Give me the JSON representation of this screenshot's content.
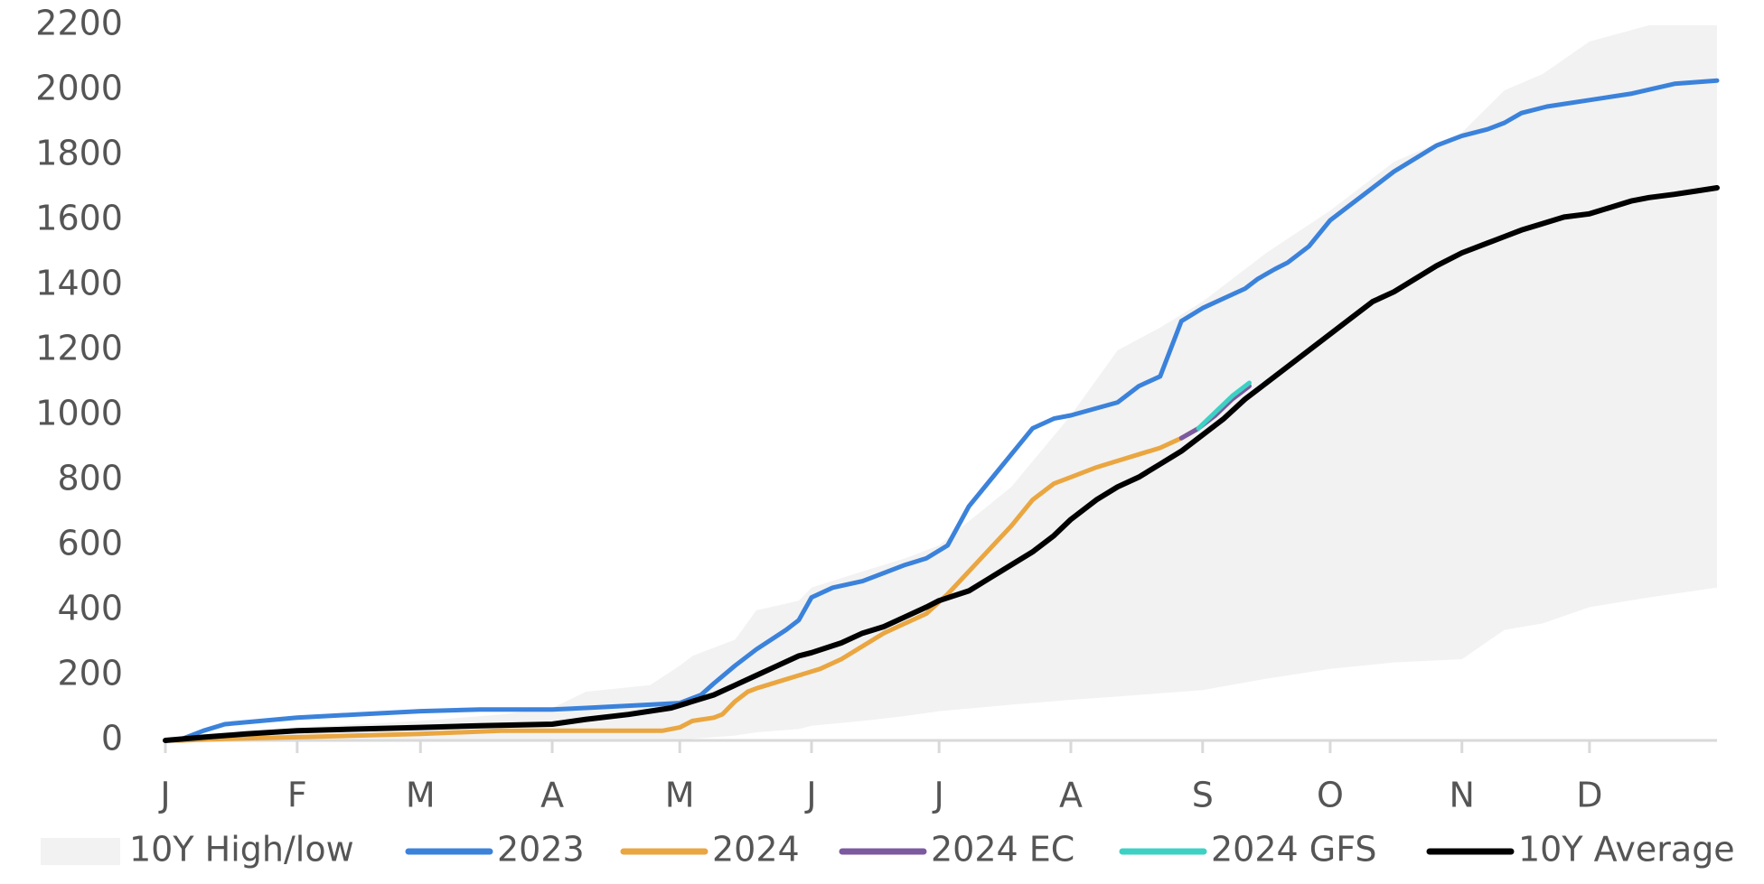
{
  "chart_data": {
    "type": "line",
    "title": "",
    "xlabel": "",
    "ylabel": "",
    "ylim": [
      0,
      2200
    ],
    "yticks": [
      "0",
      "200",
      "400",
      "600",
      "800",
      "1000",
      "1200",
      "1400",
      "1600",
      "1800",
      "2000",
      "2200"
    ],
    "xlim": [
      1,
      366
    ],
    "months": [
      "J",
      "F",
      "M",
      "A",
      "M",
      "J",
      "J",
      "A",
      "S",
      "O",
      "N",
      "D"
    ],
    "month_days": [
      1,
      32,
      61,
      92,
      122,
      153,
      183,
      214,
      245,
      275,
      306,
      336
    ],
    "grid": false,
    "legend_position": "bottom",
    "band": {
      "name": "10Y High/low",
      "color": "#f2f2f2",
      "x": [
        1,
        15,
        32,
        61,
        80,
        92,
        100,
        115,
        122,
        125,
        135,
        140,
        150,
        153,
        165,
        175,
        183,
        200,
        214,
        225,
        235,
        245,
        260,
        275,
        290,
        306,
        316,
        325,
        336,
        350,
        366
      ],
      "high": [
        0,
        20,
        40,
        60,
        80,
        100,
        150,
        170,
        230,
        260,
        310,
        400,
        430,
        470,
        520,
        560,
        600,
        780,
        1000,
        1200,
        1270,
        1350,
        1500,
        1630,
        1780,
        1870,
        2000,
        2050,
        2150,
        2200,
        2200
      ],
      "low": [
        0,
        0,
        0,
        0,
        0,
        0,
        0,
        0,
        0,
        5,
        15,
        25,
        35,
        45,
        60,
        75,
        90,
        110,
        125,
        135,
        145,
        155,
        190,
        220,
        240,
        250,
        340,
        360,
        410,
        440,
        470
      ]
    },
    "series": [
      {
        "name": "2023",
        "color": "#3b82db",
        "x": [
          1,
          5,
          10,
          15,
          32,
          46,
          61,
          75,
          92,
          100,
          115,
          122,
          127,
          130,
          135,
          140,
          147,
          150,
          153,
          158,
          165,
          175,
          180,
          185,
          190,
          195,
          200,
          205,
          210,
          214,
          225,
          230,
          235,
          240,
          245,
          250,
          255,
          258,
          262,
          265,
          270,
          275,
          280,
          285,
          290,
          295,
          300,
          306,
          312,
          316,
          320,
          326,
          336,
          346,
          356,
          366
        ],
        "y": [
          0,
          5,
          30,
          50,
          70,
          80,
          90,
          95,
          95,
          100,
          110,
          115,
          140,
          175,
          230,
          280,
          340,
          370,
          440,
          470,
          490,
          540,
          560,
          600,
          720,
          800,
          880,
          960,
          990,
          1000,
          1040,
          1090,
          1120,
          1290,
          1330,
          1360,
          1390,
          1420,
          1450,
          1470,
          1520,
          1600,
          1650,
          1700,
          1750,
          1790,
          1830,
          1860,
          1880,
          1900,
          1930,
          1950,
          1970,
          1990,
          2020,
          2030
        ]
      },
      {
        "name": "2024",
        "color": "#eaa640",
        "x": [
          1,
          5,
          15,
          32,
          61,
          80,
          92,
          100,
          110,
          118,
          122,
          125,
          130,
          132,
          135,
          138,
          140,
          145,
          150,
          155,
          160,
          165,
          170,
          175,
          180,
          185,
          190,
          195,
          200,
          205,
          210,
          214,
          220,
          225,
          230,
          235,
          240,
          244
        ],
        "y": [
          0,
          0,
          5,
          10,
          20,
          30,
          30,
          30,
          30,
          30,
          40,
          60,
          70,
          80,
          120,
          150,
          160,
          180,
          200,
          220,
          250,
          290,
          330,
          360,
          390,
          450,
          520,
          590,
          660,
          740,
          790,
          810,
          840,
          860,
          880,
          900,
          930,
          960
        ]
      },
      {
        "name": "2024 EC",
        "color": "#7b5aa0",
        "x": [
          240,
          244,
          248,
          252,
          256
        ],
        "y": [
          930,
          960,
          1000,
          1050,
          1090
        ]
      },
      {
        "name": "2024 GFS",
        "color": "#3dd1c4",
        "x": [
          244,
          248,
          252,
          256
        ],
        "y": [
          960,
          1010,
          1060,
          1100
        ]
      },
      {
        "name": "10Y Average",
        "color": "#000000",
        "x": [
          1,
          10,
          20,
          32,
          46,
          61,
          75,
          92,
          100,
          110,
          120,
          125,
          130,
          135,
          140,
          145,
          150,
          153,
          160,
          165,
          170,
          175,
          180,
          183,
          190,
          195,
          200,
          205,
          210,
          214,
          220,
          225,
          230,
          235,
          240,
          245,
          250,
          255,
          260,
          265,
          270,
          275,
          280,
          285,
          290,
          295,
          300,
          306,
          312,
          316,
          320,
          325,
          330,
          336,
          341,
          346,
          350,
          356,
          361,
          366
        ],
        "y": [
          0,
          10,
          20,
          30,
          35,
          40,
          45,
          50,
          65,
          80,
          100,
          120,
          140,
          170,
          200,
          230,
          260,
          270,
          300,
          330,
          350,
          380,
          410,
          430,
          460,
          500,
          540,
          580,
          630,
          680,
          740,
          780,
          810,
          850,
          890,
          940,
          990,
          1050,
          1100,
          1150,
          1200,
          1250,
          1300,
          1350,
          1380,
          1420,
          1460,
          1500,
          1530,
          1550,
          1570,
          1590,
          1610,
          1620,
          1640,
          1660,
          1670,
          1680,
          1690,
          1700
        ]
      }
    ]
  }
}
